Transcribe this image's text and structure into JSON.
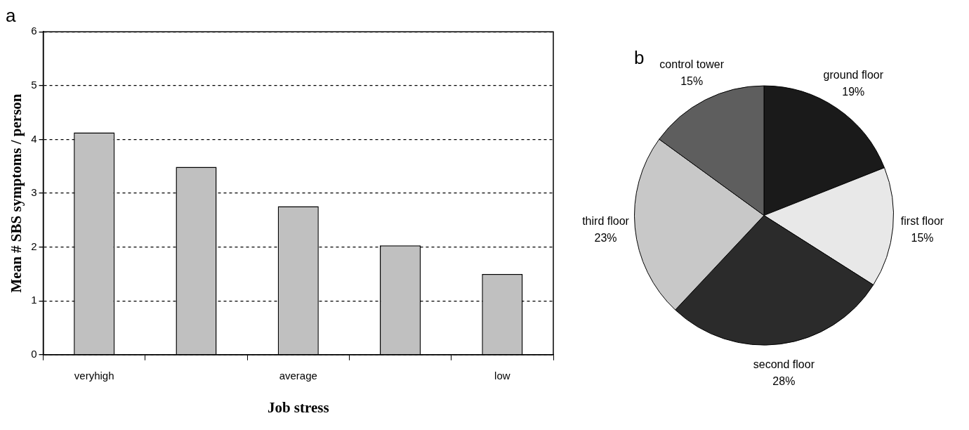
{
  "chart_data": [
    {
      "type": "bar",
      "title": "a",
      "xlabel": "Job stress",
      "ylabel": "Mean # SBS symptoms / person",
      "categories": [
        "veryhigh",
        null,
        "average",
        null,
        "low"
      ],
      "values": [
        4.13,
        3.49,
        2.76,
        2.03,
        1.5
      ],
      "color": "#c0c0c0",
      "ylim": [
        0,
        6
      ],
      "yticks": [
        0,
        1,
        2,
        3,
        4,
        5,
        6
      ],
      "grid": "y"
    },
    {
      "type": "pie",
      "title": "b",
      "categories": [
        "ground floor",
        "first floor",
        "second floor",
        "third floor",
        "control tower"
      ],
      "values": [
        19,
        15,
        28,
        23,
        15
      ],
      "value_labels": [
        "19%",
        "15%",
        "28%",
        "23%",
        "15%"
      ],
      "colors": [
        "#1a1a1a",
        "#e8e8e8",
        "#2b2b2b",
        "#c8c8c8",
        "#5e5e5e"
      ]
    }
  ]
}
